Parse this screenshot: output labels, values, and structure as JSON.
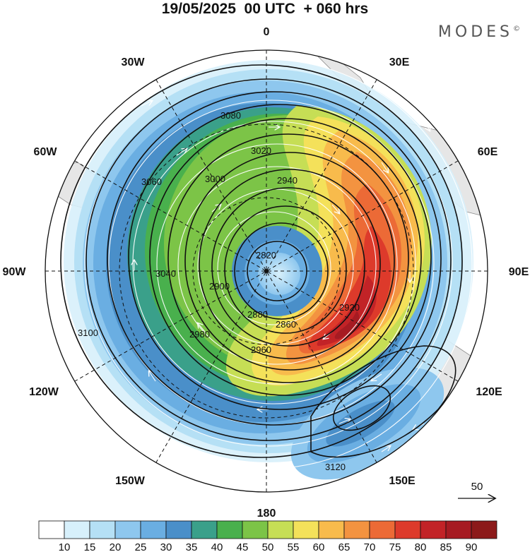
{
  "title": "19/05/2025  00 UTC  + 060 hrs",
  "logo": "MODES",
  "logo_mark": "©",
  "longitude_labels": {
    "n": "0",
    "nne": "30E",
    "ene": "60E",
    "e": "90E",
    "ese": "120E",
    "sse": "150E",
    "s": "180",
    "ssw": "150W",
    "wsw": "120W",
    "w": "90W",
    "wnw": "60W",
    "nnw": "30W"
  },
  "contour_labels": [
    "2820",
    "2860",
    "2880",
    "2900",
    "2920",
    "2940",
    "2960",
    "2980",
    "3000",
    "3020",
    "3040",
    "3060",
    "3080",
    "3100",
    "3120"
  ],
  "reference_vector": {
    "label": "50"
  },
  "colorbar": {
    "colors": [
      "#ffffff",
      "#d7f0fb",
      "#b5e0f5",
      "#8ec7ee",
      "#6aaee2",
      "#4a8fc9",
      "#3aa08a",
      "#49b04d",
      "#7cc447",
      "#c6de55",
      "#f4e15a",
      "#f8bb4c",
      "#f39340",
      "#ec6a36",
      "#dd3a2b",
      "#c22327",
      "#a61b22",
      "#8c1a1a"
    ],
    "labels": [
      "10",
      "15",
      "20",
      "25",
      "30",
      "35",
      "40",
      "45",
      "50",
      "55",
      "60",
      "65",
      "70",
      "75",
      "80",
      "85",
      "90"
    ]
  }
}
